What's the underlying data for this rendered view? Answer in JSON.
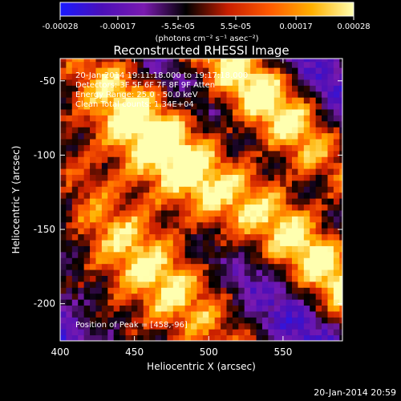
{
  "window": {
    "timestamp": "20-Jan-2014 20:59"
  },
  "colorbar": {
    "ticks": [
      "-0.00028",
      "-0.00017",
      "-5.5e-05",
      "5.5e-05",
      "0.00017",
      "0.00028"
    ],
    "tick_values": [
      -0.00028,
      -0.00017,
      -5.5e-05,
      5.5e-05,
      0.00017,
      0.00028
    ],
    "range": [
      -0.00028,
      0.00028
    ],
    "unit_label": "(photons cm⁻² s⁻¹ asec⁻²)",
    "colors": [
      "#1a1aff",
      "#4b0fb8",
      "#7a1ab0",
      "#000000",
      "#c81e00",
      "#ff5a00",
      "#ffb000",
      "#ffffb0"
    ]
  },
  "chart_data": {
    "type": "heatmap",
    "title": "Reconstructed RHESSI Image",
    "xlabel": "Heliocentric X (arcsec)",
    "ylabel": "Heliocentric Y (arcsec)",
    "xlim": [
      400,
      590
    ],
    "ylim": [
      -225,
      -35
    ],
    "xticks": [
      400,
      450,
      500,
      550
    ],
    "yticks": [
      -50,
      -100,
      -150,
      -200
    ],
    "xtick_labels": [
      "400",
      "450",
      "500",
      "550"
    ],
    "ytick_labels": [
      "-50",
      "-100",
      "-150",
      "-200"
    ],
    "annotations": [
      "20-Jan-2014 19:11:18.000 to 19:17:18.000",
      "Detectors: 3F 5F 6F 7F 8F 9F Atten",
      "Energy Range: 25.0 - 50.0 keV",
      "Clean     Total counts: 1.34E+04"
    ],
    "peak_label": "Position of Peak = [458,-96]",
    "peak": [
      458,
      -96
    ],
    "grid_resolution_arcsec": 4,
    "bright_bands": [
      {
        "center": [
          458,
          -96
        ],
        "width_arcsec": 20,
        "intensity": 1.0
      },
      {
        "center": [
          455,
          -185
        ],
        "width_arcsec": 18,
        "intensity": 0.85
      },
      {
        "center": [
          530,
          -60
        ],
        "width_arcsec": 18,
        "intensity": 0.8
      },
      {
        "center": [
          580,
          -175
        ],
        "width_arcsec": 16,
        "intensity": 0.8
      }
    ]
  }
}
